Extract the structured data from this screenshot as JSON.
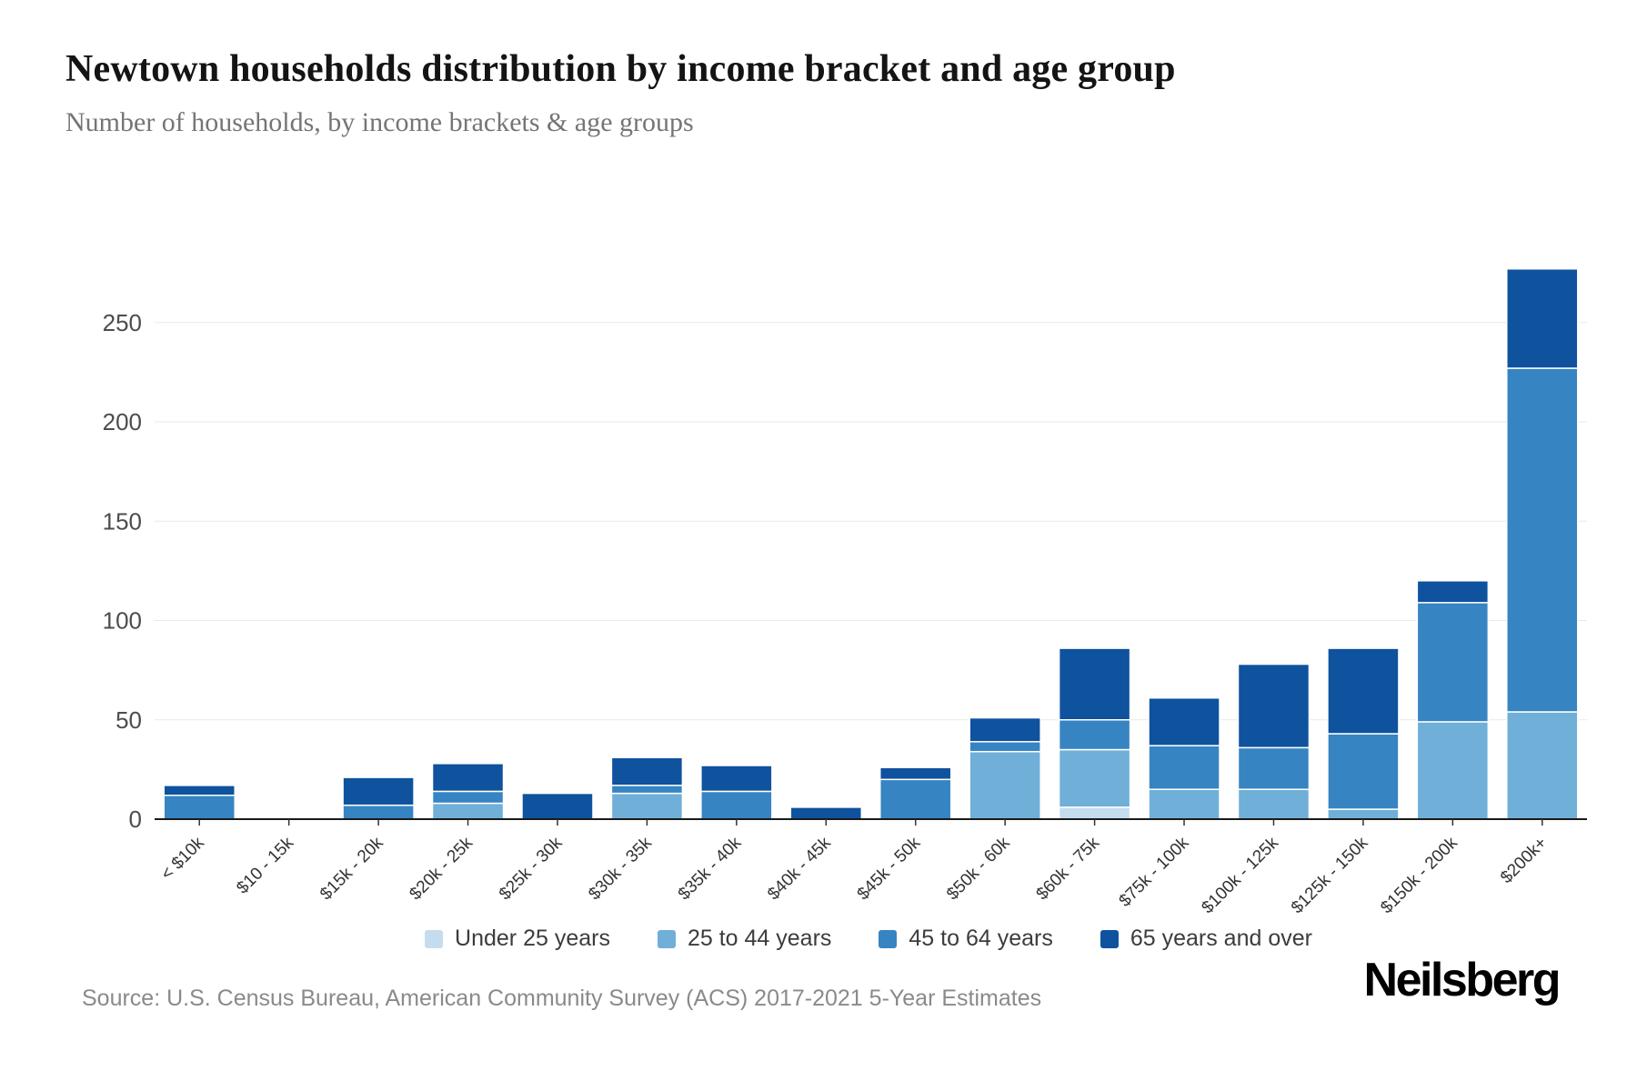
{
  "chart_data": {
    "type": "bar",
    "stacked": true,
    "title": "Newtown households distribution by income bracket and age group",
    "subtitle": "Number of households, by income brackets & age groups",
    "categories": [
      "< $10k",
      "$10 - 15k",
      "$15k - 20k",
      "$20k - 25k",
      "$25k - 30k",
      "$30k - 35k",
      "$35k - 40k",
      "$40k - 45k",
      "$45k - 50k",
      "$50k - 60k",
      "$60k - 75k",
      "$75k - 100k",
      "$100k - 125k",
      "$125k - 150k",
      "$150k - 200k",
      "$200k+"
    ],
    "series": [
      {
        "name": "Under 25 years",
        "color": "#c5dcee",
        "values": [
          0,
          0,
          0,
          0,
          0,
          0,
          0,
          0,
          0,
          0,
          6,
          0,
          0,
          0,
          0,
          0
        ]
      },
      {
        "name": "25 to 44 years",
        "color": "#6fafd8",
        "values": [
          0,
          0,
          0,
          8,
          0,
          13,
          0,
          0,
          0,
          34,
          29,
          15,
          15,
          5,
          49,
          54
        ]
      },
      {
        "name": "45 to 64 years",
        "color": "#3784c2",
        "values": [
          12,
          0,
          7,
          6,
          0,
          4,
          14,
          0,
          20,
          5,
          15,
          22,
          21,
          38,
          60,
          173
        ]
      },
      {
        "name": "65 years and over",
        "color": "#0f529e",
        "values": [
          5,
          0,
          14,
          14,
          13,
          14,
          13,
          6,
          6,
          12,
          36,
          24,
          42,
          43,
          11,
          50
        ]
      }
    ],
    "xlabel": "",
    "ylabel": "",
    "ylim": [
      0,
      250
    ],
    "yticks": [
      0,
      50,
      100,
      150,
      200,
      250
    ],
    "grid": true,
    "legend_position": "bottom"
  },
  "footer": {
    "source": "Source: U.S. Census Bureau, American Community Survey (ACS) 2017-2021 5-Year Estimates",
    "brand": "Neilsberg"
  }
}
